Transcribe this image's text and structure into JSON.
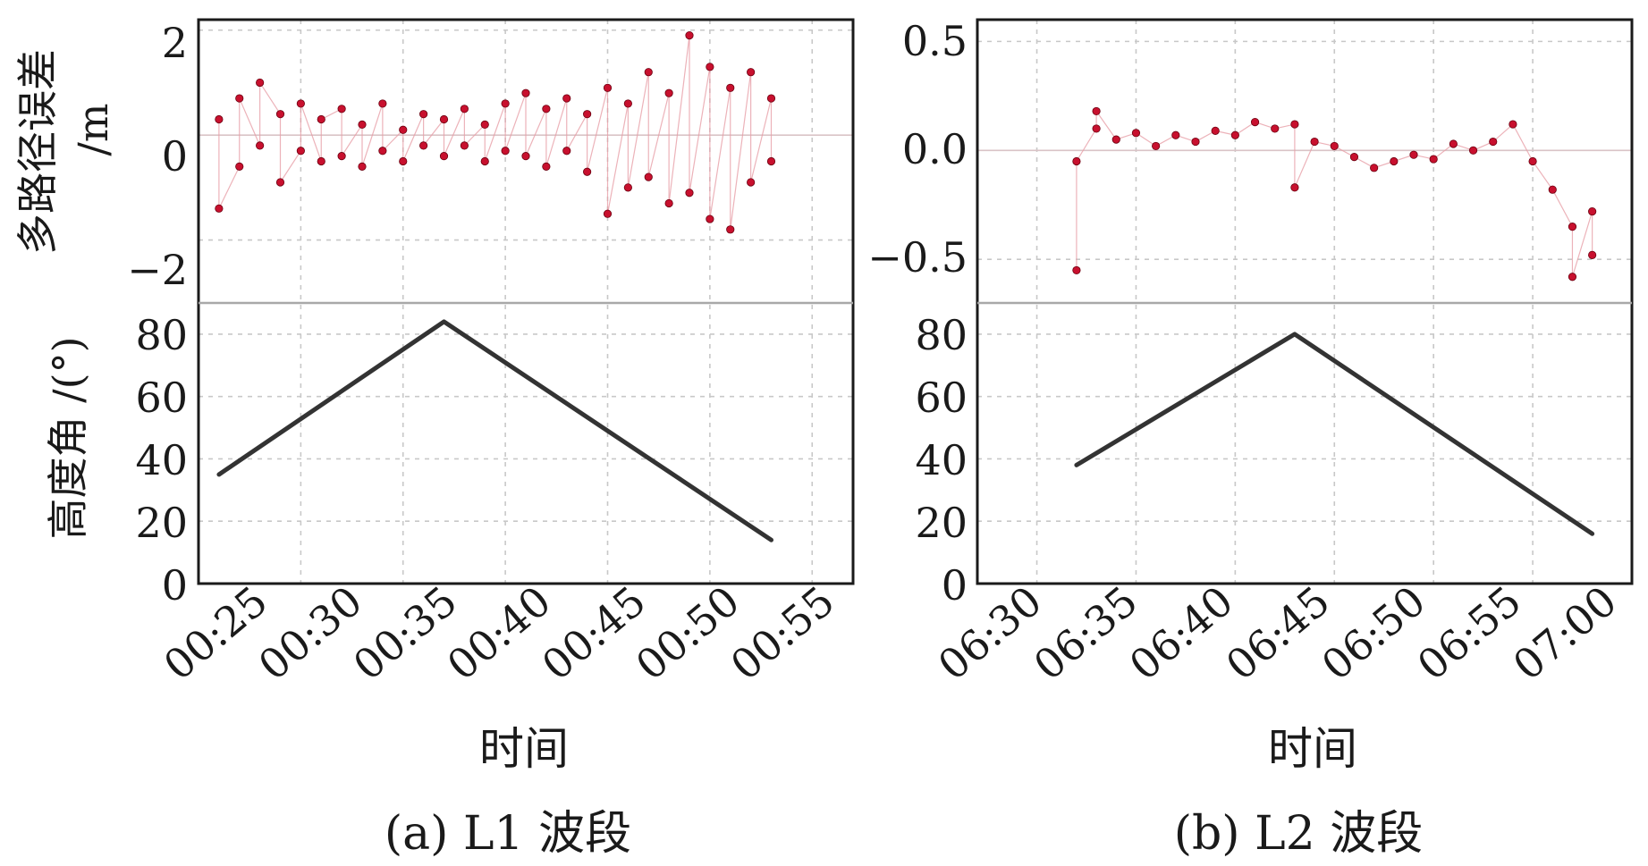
{
  "chart_data": [
    {
      "panel": "a",
      "caption": "(a) L1 波段",
      "xlabel": "时间",
      "x_ticks": [
        "00:25",
        "00:30",
        "00:35",
        "00:40",
        "00:45",
        "00:50",
        "00:55"
      ],
      "x_range": [
        "00:25",
        "00:57"
      ],
      "top": {
        "type": "scatter",
        "ylabel_line1": "多路径误差",
        "ylabel_line2": "/m",
        "y_ticks": [
          "2",
          "0",
          "−2"
        ],
        "ylim": [
          -3.2,
          2.2
        ],
        "grid": true,
        "series": [
          {
            "color": "#c8102e",
            "points": [
              [
                "00:26",
                "0.3"
              ],
              [
                "00:26",
                "-1.4"
              ],
              [
                "00:27",
                "-0.6"
              ],
              [
                "00:27",
                "0.7"
              ],
              [
                "00:28",
                "-0.2"
              ],
              [
                "00:28",
                "1.0"
              ],
              [
                "00:29",
                "0.4"
              ],
              [
                "00:29",
                "-0.9"
              ],
              [
                "00:30",
                "-0.3"
              ],
              [
                "00:30",
                "0.6"
              ],
              [
                "00:31",
                "-0.5"
              ],
              [
                "00:31",
                "0.3"
              ],
              [
                "00:32",
                "0.5"
              ],
              [
                "00:32",
                "-0.4"
              ],
              [
                "00:33",
                "0.2"
              ],
              [
                "00:33",
                "-0.6"
              ],
              [
                "00:34",
                "0.6"
              ],
              [
                "00:34",
                "-0.3"
              ],
              [
                "00:35",
                "0.1"
              ],
              [
                "00:35",
                "-0.5"
              ],
              [
                "00:36",
                "0.4"
              ],
              [
                "00:36",
                "-0.2"
              ],
              [
                "00:37",
                "0.3"
              ],
              [
                "00:37",
                "-0.4"
              ],
              [
                "00:38",
                "0.5"
              ],
              [
                "00:38",
                "-0.2"
              ],
              [
                "00:39",
                "0.2"
              ],
              [
                "00:39",
                "-0.5"
              ],
              [
                "00:40",
                "0.6"
              ],
              [
                "00:40",
                "-0.3"
              ],
              [
                "00:41",
                "0.8"
              ],
              [
                "00:41",
                "-0.4"
              ],
              [
                "00:42",
                "0.5"
              ],
              [
                "00:42",
                "-0.6"
              ],
              [
                "00:43",
                "0.7"
              ],
              [
                "00:43",
                "-0.3"
              ],
              [
                "00:44",
                "0.4"
              ],
              [
                "00:44",
                "-0.7"
              ],
              [
                "00:45",
                "0.9"
              ],
              [
                "00:45",
                "-1.5"
              ],
              [
                "00:46",
                "0.6"
              ],
              [
                "00:46",
                "-1.0"
              ],
              [
                "00:47",
                "1.2"
              ],
              [
                "00:47",
                "-0.8"
              ],
              [
                "00:48",
                "0.8"
              ],
              [
                "00:48",
                "-1.3"
              ],
              [
                "00:49",
                "1.9"
              ],
              [
                "00:49",
                "-1.1"
              ],
              [
                "00:50",
                "1.3"
              ],
              [
                "00:50",
                "-1.6"
              ],
              [
                "00:51",
                "0.9"
              ],
              [
                "00:51",
                "-1.8"
              ],
              [
                "00:52",
                "1.2"
              ],
              [
                "00:52",
                "-0.9"
              ],
              [
                "00:53",
                "0.7"
              ],
              [
                "00:53",
                "-0.5"
              ]
            ]
          }
        ]
      },
      "bottom": {
        "type": "line",
        "ylabel": "高度角 /(°)",
        "y_ticks": [
          "80",
          "60",
          "40",
          "20",
          "0"
        ],
        "ylim": [
          0,
          90
        ],
        "grid": true,
        "series": [
          {
            "color": "#333333",
            "x": [
              "00:26",
              "00:37",
              "00:53"
            ],
            "y": [
              35,
              84,
              14
            ]
          }
        ]
      }
    },
    {
      "panel": "b",
      "caption": "(b) L2 波段",
      "xlabel": "时间",
      "x_ticks": [
        "06:30",
        "06:35",
        "06:40",
        "06:45",
        "06:50",
        "06:55",
        "07:00"
      ],
      "x_range": [
        "06:27",
        "07:00"
      ],
      "top": {
        "type": "scatter",
        "y_ticks": [
          "0.5",
          "0.0",
          "−0.5"
        ],
        "ylim": [
          -0.7,
          0.6
        ],
        "grid": true,
        "series": [
          {
            "color": "#c8102e",
            "points": [
              [
                "06:32",
                "-0.55"
              ],
              [
                "06:32",
                "-0.05"
              ],
              [
                "06:33",
                "0.10"
              ],
              [
                "06:33",
                "0.18"
              ],
              [
                "06:34",
                "0.05"
              ],
              [
                "06:35",
                "0.08"
              ],
              [
                "06:36",
                "0.02"
              ],
              [
                "06:37",
                "0.07"
              ],
              [
                "06:38",
                "0.04"
              ],
              [
                "06:39",
                "0.09"
              ],
              [
                "06:40",
                "0.07"
              ],
              [
                "06:41",
                "0.13"
              ],
              [
                "06:42",
                "0.10"
              ],
              [
                "06:43",
                "0.12"
              ],
              [
                "06:43",
                "-0.17"
              ],
              [
                "06:44",
                "0.04"
              ],
              [
                "06:45",
                "0.02"
              ],
              [
                "06:46",
                "-0.03"
              ],
              [
                "06:47",
                "-0.08"
              ],
              [
                "06:48",
                "-0.05"
              ],
              [
                "06:49",
                "-0.02"
              ],
              [
                "06:50",
                "-0.04"
              ],
              [
                "06:51",
                "0.03"
              ],
              [
                "06:52",
                "0.00"
              ],
              [
                "06:53",
                "0.04"
              ],
              [
                "06:54",
                "0.12"
              ],
              [
                "06:55",
                "-0.05"
              ],
              [
                "06:56",
                "-0.18"
              ],
              [
                "06:57",
                "-0.35"
              ],
              [
                "06:57",
                "-0.58"
              ],
              [
                "06:58",
                "-0.28"
              ],
              [
                "06:58",
                "-0.48"
              ]
            ]
          }
        ]
      },
      "bottom": {
        "type": "line",
        "y_ticks": [
          "80",
          "60",
          "40",
          "20",
          "0"
        ],
        "ylim": [
          0,
          90
        ],
        "grid": true,
        "series": [
          {
            "color": "#333333",
            "x": [
              "06:32",
              "06:43",
              "06:58"
            ],
            "y": [
              38,
              80,
              16
            ]
          }
        ]
      }
    }
  ]
}
